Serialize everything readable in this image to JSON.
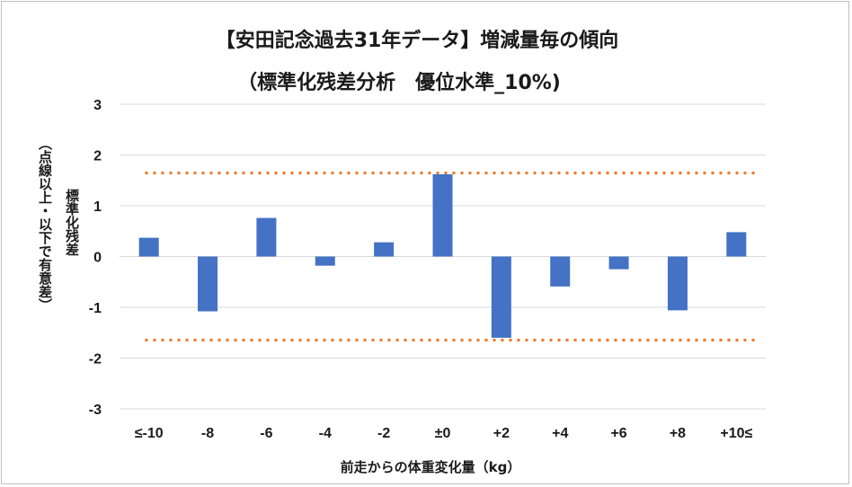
{
  "chart_data": {
    "type": "bar",
    "title_line1": "【安田記念過去31年データ】増減量毎の傾向",
    "title_line2": "（標準化残差分析　優位水準_10%)",
    "ylabel_line1": "標準化残差",
    "ylabel_line2": "（点線以上・以下で有意差）",
    "xlabel": "前走からの体重変化量（kg）",
    "categories": [
      "≤-10",
      "-8",
      "-6",
      "-4",
      "-2",
      "±0",
      "+2",
      "+4",
      "+6",
      "+8",
      "+10≤"
    ],
    "values": [
      0.37,
      -1.08,
      0.76,
      -0.18,
      0.28,
      1.62,
      -1.6,
      -0.59,
      -0.25,
      -1.06,
      0.48
    ],
    "yticks": [
      "3",
      "2",
      "1",
      "0",
      "-1",
      "-2",
      "-3"
    ],
    "ylim": [
      -3,
      3
    ],
    "threshold": 1.645,
    "grid": true,
    "bar_color": "#4472c4",
    "threshold_color": "#ed7d31",
    "grid_color": "#d9d9d9"
  }
}
